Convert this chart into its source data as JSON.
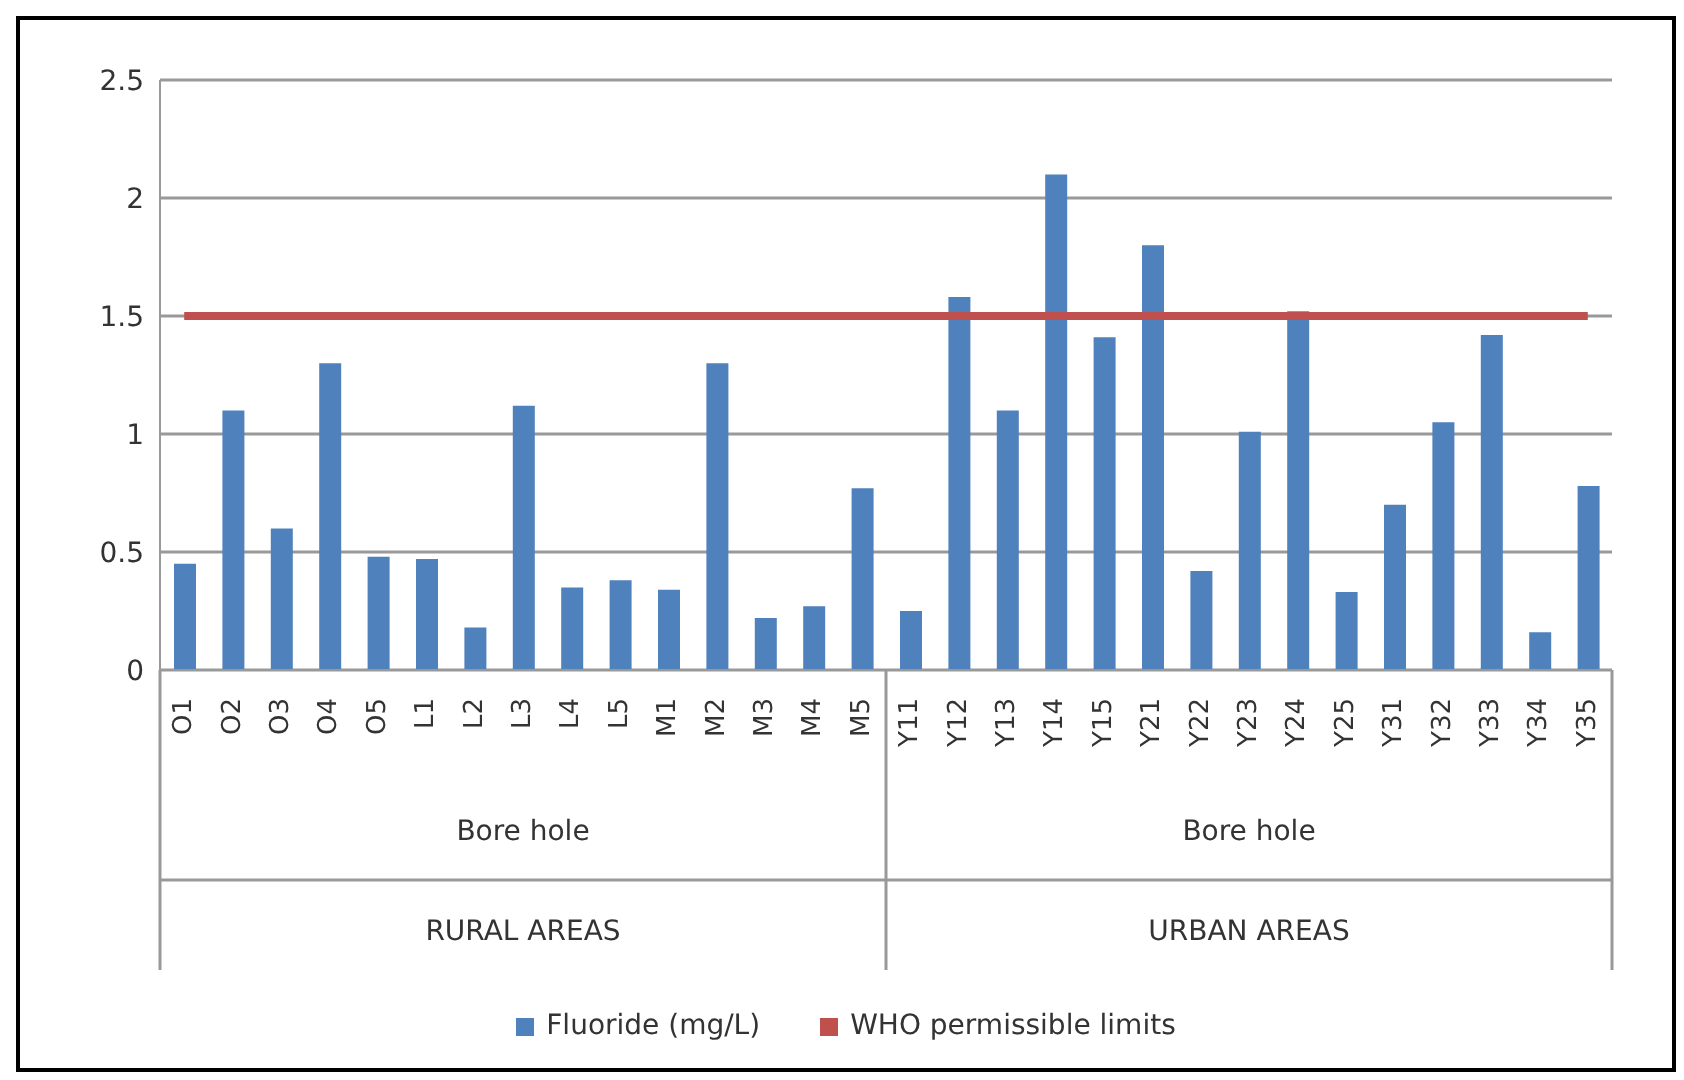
{
  "chart_data": {
    "type": "bar",
    "categories": [
      "O1",
      "O2",
      "O3",
      "O4",
      "O5",
      "L1",
      "L2",
      "L3",
      "L4",
      "L5",
      "M1",
      "M2",
      "M3",
      "M4",
      "M5",
      "Y11",
      "Y12",
      "Y13",
      "Y14",
      "Y15",
      "Y21",
      "Y22",
      "Y23",
      "Y24",
      "Y25",
      "Y31",
      "Y32",
      "Y33",
      "Y34",
      "Y35"
    ],
    "series": [
      {
        "name": "Fluoride (mg/L)",
        "color": "#4f81bd",
        "values": [
          0.45,
          1.1,
          0.6,
          1.3,
          0.48,
          0.47,
          0.18,
          1.12,
          0.35,
          0.38,
          0.34,
          1.3,
          0.22,
          0.27,
          0.77,
          0.25,
          1.58,
          1.1,
          2.1,
          1.41,
          1.8,
          0.42,
          1.01,
          1.52,
          0.33,
          0.7,
          1.05,
          1.42,
          0.16,
          0.78
        ]
      },
      {
        "name": "WHO permissible limits",
        "color": "#c0504d",
        "type": "line",
        "values": [
          1.5,
          1.5,
          1.5,
          1.5,
          1.5,
          1.5,
          1.5,
          1.5,
          1.5,
          1.5,
          1.5,
          1.5,
          1.5,
          1.5,
          1.5,
          1.5,
          1.5,
          1.5,
          1.5,
          1.5,
          1.5,
          1.5,
          1.5,
          1.5,
          1.5,
          1.5,
          1.5,
          1.5,
          1.5,
          1.5
        ]
      }
    ],
    "ylim": [
      0,
      2.5
    ],
    "yticks": [
      0,
      0.5,
      1,
      1.5,
      2,
      2.5
    ],
    "grid": "y",
    "legend": "bottom",
    "marker": "none",
    "annotations": [
      "Bore hole",
      "Bore hole",
      "RURAL AREAS",
      "URBAN AREAS"
    ]
  }
}
